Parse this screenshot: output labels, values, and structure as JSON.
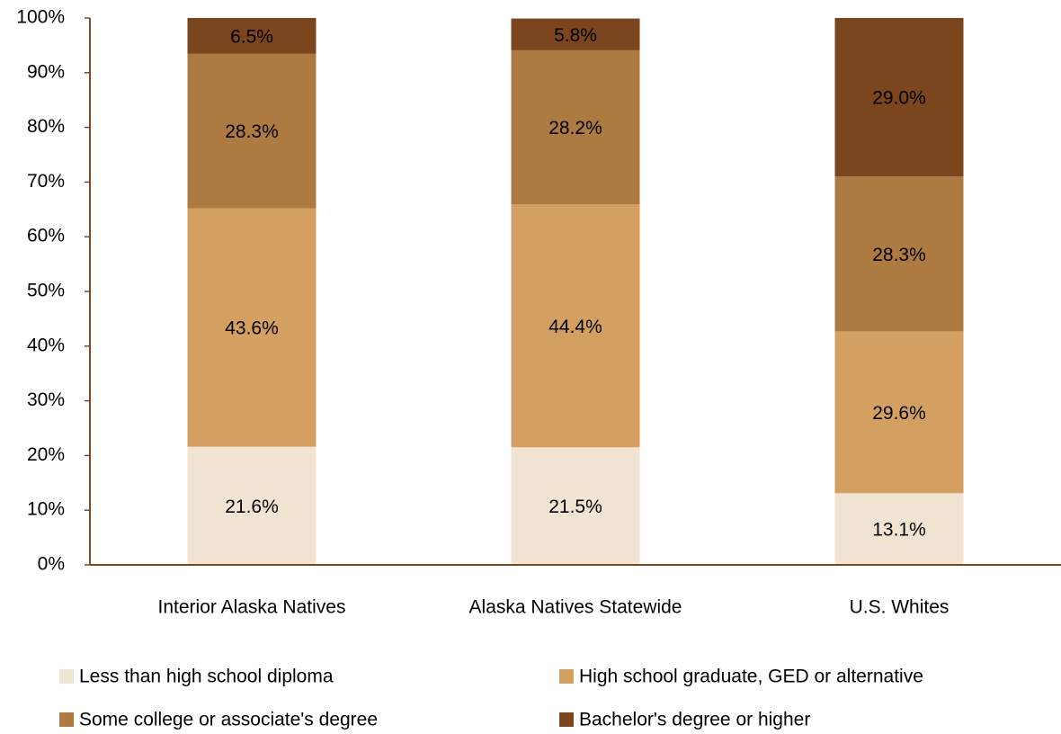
{
  "chart_data": {
    "type": "stacked-bar",
    "categories": [
      "Interior Alaska Natives",
      "Alaska Natives Statewide",
      "U.S. Whites"
    ],
    "series": [
      {
        "name": "Less than high school diploma",
        "color": "#f2e4d3",
        "values": [
          21.6,
          21.5,
          13.1
        ],
        "value_labels": [
          "21.6%",
          "21.5%",
          "13.1%"
        ]
      },
      {
        "name": "High school graduate, GED or alternative",
        "color": "#d4a062",
        "values": [
          43.6,
          44.4,
          29.6
        ],
        "value_labels": [
          "43.6%",
          "44.4%",
          "29.6%"
        ]
      },
      {
        "name": "Some college or associate's degree",
        "color": "#ad7a42",
        "values": [
          28.3,
          28.2,
          28.3
        ],
        "value_labels": [
          "28.3%",
          "28.2%",
          "28.3%"
        ]
      },
      {
        "name": "Bachelor's degree or higher",
        "color": "#7b461d",
        "values": [
          6.5,
          5.8,
          29.0
        ],
        "value_labels": [
          "6.5%",
          "5.8%",
          "29.0%"
        ]
      }
    ],
    "ylim": [
      0,
      100
    ],
    "yticks": [
      {
        "value": 0,
        "label": "0%"
      },
      {
        "value": 10,
        "label": "10%"
      },
      {
        "value": 20,
        "label": "20%"
      },
      {
        "value": 30,
        "label": "30%"
      },
      {
        "value": 40,
        "label": "40%"
      },
      {
        "value": 50,
        "label": "50%"
      },
      {
        "value": 60,
        "label": "60%"
      },
      {
        "value": 70,
        "label": "70%"
      },
      {
        "value": 80,
        "label": "80%"
      },
      {
        "value": 90,
        "label": "90%"
      },
      {
        "value": 100,
        "label": "100%"
      }
    ],
    "grid": false,
    "legend": "bottom"
  }
}
